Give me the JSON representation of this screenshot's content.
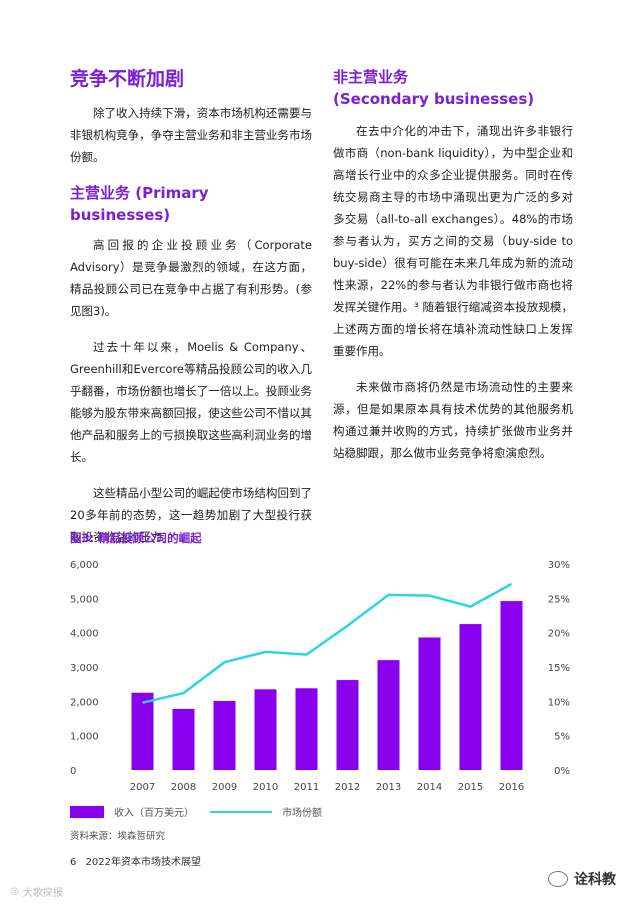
{
  "left": {
    "title": "竞争不断加剧",
    "intro": "除了收入持续下滑，资本市场机构还需要与非银机构竞争，争夺主营业务和非主营业务市场份额。",
    "sub_title": "主营业务 (Primary businesses)",
    "paragraphs": [
      "高回报的企业投顾业务（Corporate Advisory）是竞争最激烈的领域，在这方面，精品投顾公司已在竞争中占据了有利形势。(参见图3)。",
      "过去十年以来，Moelis & Company、Greenhill和Evercore等精品投顾公司的收入几乎翻番，市场份额也增长了一倍以上。投顾业务能够为股东带来高额回报，使这些公司不惜以其他产品和服务上的亏损换取这些高利润业务的增长。",
      "这些精品小型公司的崛起使市场结构回到了20多年前的态势，这一趋势加剧了大型投行获取投资收益的压力。"
    ]
  },
  "right": {
    "title_line1": "非主营业务",
    "title_line2": "(Secondary businesses)",
    "paragraphs": [
      "在去中介化的冲击下，涌现出许多非银行做市商（non-bank liquidity），为中型企业和高增长行业中的众多企业提供服务。同时在传统交易商主导的市场中涌现出更为广泛的多对多交易（all-to-all exchanges）。48%的市场参与者认为，买方之间的交易（buy-side to buy-side）很有可能在未来几年成为新的流动性来源，22%的参与者认为非银行做市商也将发挥关键作用。³ 随着银行缩减资本投放规模，上述两方面的增长将在填补流动性缺口上发挥重要作用。",
      "未来做市商将仍然是市场流动性的主要来源，但是如果原本具有技术优势的其他服务机构通过兼并收购的方式，持续扩张做市业务并站稳脚跟，那么做市业务竞争将愈演愈烈。"
    ]
  },
  "chart_title": "图3: 精品投顾公司的崛起",
  "chart_data": {
    "type": "bar",
    "categories": [
      "2007",
      "2008",
      "2009",
      "2010",
      "2011",
      "2012",
      "2013",
      "2014",
      "2015",
      "2016"
    ],
    "series": [
      {
        "name": "收入（百万美元）",
        "type": "bar",
        "axis": "left",
        "values": [
          2250,
          1780,
          2010,
          2350,
          2380,
          2620,
          3200,
          3860,
          4250,
          4920
        ]
      },
      {
        "name": "市场份额",
        "type": "line",
        "axis": "right",
        "values": [
          9.8,
          11.2,
          15.7,
          17.2,
          16.8,
          21.0,
          25.5,
          25.4,
          23.8,
          27.1
        ]
      }
    ],
    "y_left": {
      "min": 0,
      "max": 6000,
      "ticks": [
        "0",
        "1,000",
        "2,000",
        "3,000",
        "4,000",
        "5,000",
        "6,000"
      ]
    },
    "y_right": {
      "min": 0,
      "max": 30,
      "ticks": [
        "0%",
        "5%",
        "10%",
        "15%",
        "20%",
        "25%",
        "30%"
      ]
    },
    "colors": {
      "bar": "#8800ee",
      "line": "#2bd6e4"
    },
    "grid": false
  },
  "legend": {
    "bar_label": "收入（百万美元）",
    "line_label": "市场份额"
  },
  "source": "资料来源：埃森哲研究",
  "footer": {
    "page": "6",
    "title": "2022年资本市场技术展望"
  },
  "watermark": {
    "left": "大歌探报",
    "right": "诠科教"
  }
}
